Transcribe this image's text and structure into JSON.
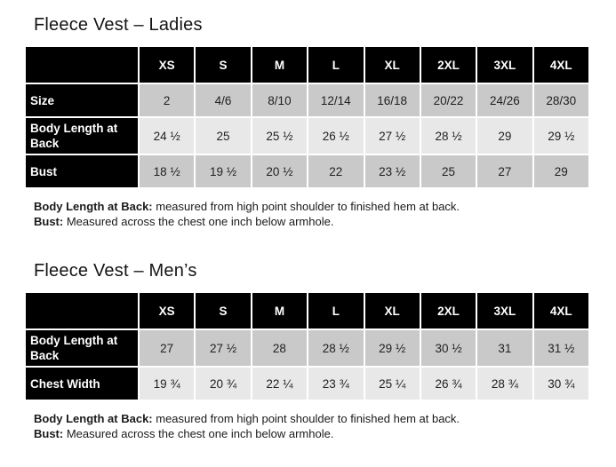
{
  "colors": {
    "header_bg": "#000000",
    "header_text": "#ffffff",
    "label_bg": "#000000",
    "row_dark": "#c9c9c9",
    "row_light": "#e8e8e8",
    "page_bg": "#ffffff"
  },
  "sections": [
    {
      "title": "Fleece Vest – Ladies",
      "table": {
        "columns": [
          "",
          "XS",
          "S",
          "M",
          "L",
          "XL",
          "2XL",
          "3XL",
          "4XL"
        ],
        "rows": [
          {
            "label": "Size",
            "shade": "dark",
            "values": [
              "2",
              "4/6",
              "8/10",
              "12/14",
              "16/18",
              "20/22",
              "24/26",
              "28/30"
            ]
          },
          {
            "label": "Body Length at Back",
            "shade": "light",
            "values": [
              "24 ½",
              "25",
              "25 ½",
              "26 ½",
              "27 ½",
              "28 ½",
              "29",
              "29 ½"
            ]
          },
          {
            "label": "Bust",
            "shade": "dark",
            "values": [
              "18 ½",
              "19 ½",
              "20 ½",
              "22",
              "23 ½",
              "25",
              "27",
              "29"
            ]
          }
        ]
      },
      "notes": [
        {
          "label": "Body Length at Back:",
          "text": " measured from high point shoulder to finished hem at back."
        },
        {
          "label": "Bust:",
          "text": " Measured across the chest one inch below armhole."
        }
      ]
    },
    {
      "title": "Fleece Vest – Men’s",
      "table": {
        "columns": [
          "",
          "XS",
          "S",
          "M",
          "L",
          "XL",
          "2XL",
          "3XL",
          "4XL"
        ],
        "rows": [
          {
            "label": "Body Length at Back",
            "shade": "dark",
            "values": [
              "27",
              "27 ½",
              "28",
              "28 ½",
              "29 ½",
              "30 ½",
              "31",
              "31 ½"
            ]
          },
          {
            "label": "Chest Width",
            "shade": "light",
            "values": [
              "19 ¾",
              "20 ¾",
              "22 ¼",
              "23 ¾",
              "25 ¼",
              "26 ¾",
              "28 ¾",
              "30 ¾"
            ]
          }
        ]
      },
      "notes": [
        {
          "label": "Body Length at Back:",
          "text": " measured from high point shoulder to finished hem at back."
        },
        {
          "label": "Bust:",
          "text": " Measured across the chest one inch below armhole."
        }
      ]
    }
  ]
}
